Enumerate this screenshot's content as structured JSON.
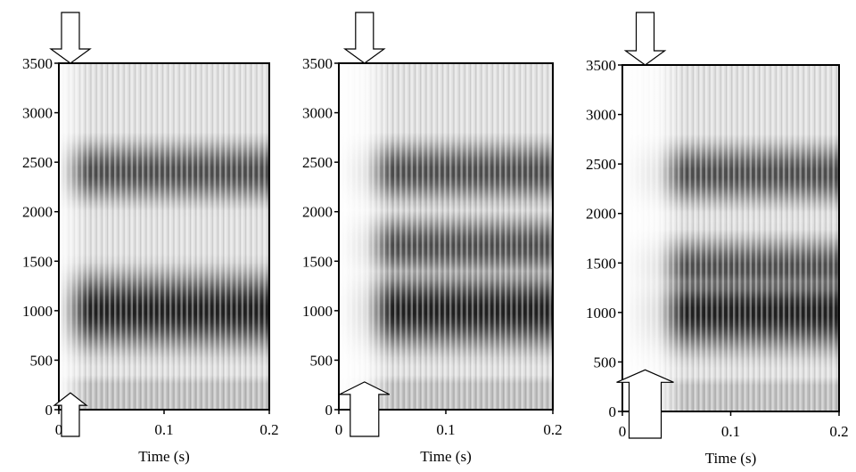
{
  "chart_data": [
    {
      "type": "heatmap",
      "xlabel": "Time (s)",
      "ylabel": "",
      "xlim": [
        0,
        0.2
      ],
      "ylim": [
        0,
        3500
      ],
      "x_ticks": [
        "0",
        "0.1",
        "0.2"
      ],
      "y_ticks": [
        "0",
        "500",
        "1000",
        "1500",
        "2000",
        "2500",
        "3000",
        "3500"
      ],
      "colormap": "grayscale (dark = high energy)",
      "formant_bands_hz": [
        1000,
        2400
      ],
      "onset_s": 0.004,
      "arrows": [
        {
          "direction": "down",
          "time_s": 0.011,
          "freq_hz": 3500
        },
        {
          "direction": "up",
          "time_s": 0.011,
          "freq_hz": 170
        }
      ]
    },
    {
      "type": "heatmap",
      "xlabel": "Time (s)",
      "ylabel": "",
      "xlim": [
        0,
        0.2
      ],
      "ylim": [
        0,
        3500
      ],
      "x_ticks": [
        "0",
        "0.1",
        "0.2"
      ],
      "y_ticks": [
        "0",
        "500",
        "1000",
        "1500",
        "2000",
        "2500",
        "3000",
        "3500"
      ],
      "colormap": "grayscale (dark = high energy)",
      "formant_bands_hz": [
        1000,
        1650,
        2400
      ],
      "onset_s": 0.025,
      "arrows": [
        {
          "direction": "down",
          "time_s": 0.024,
          "freq_hz": 3500
        },
        {
          "direction": "up",
          "time_s": 0.024,
          "freq_hz": 280
        }
      ]
    },
    {
      "type": "heatmap",
      "xlabel": "Time (s)",
      "ylabel": "",
      "xlim": [
        0,
        0.2
      ],
      "ylim": [
        0,
        3500
      ],
      "x_ticks": [
        "0",
        "0.1",
        "0.2"
      ],
      "y_ticks": [
        "0",
        "500",
        "1000",
        "1500",
        "2000",
        "2500",
        "3000",
        "3500"
      ],
      "colormap": "grayscale (dark = high energy)",
      "formant_bands_hz": [
        1000,
        1450,
        2400
      ],
      "onset_s": 0.033,
      "arrows": [
        {
          "direction": "down",
          "time_s": 0.021,
          "freq_hz": 3500
        },
        {
          "direction": "up",
          "time_s": 0.021,
          "freq_hz": 420
        }
      ]
    }
  ]
}
